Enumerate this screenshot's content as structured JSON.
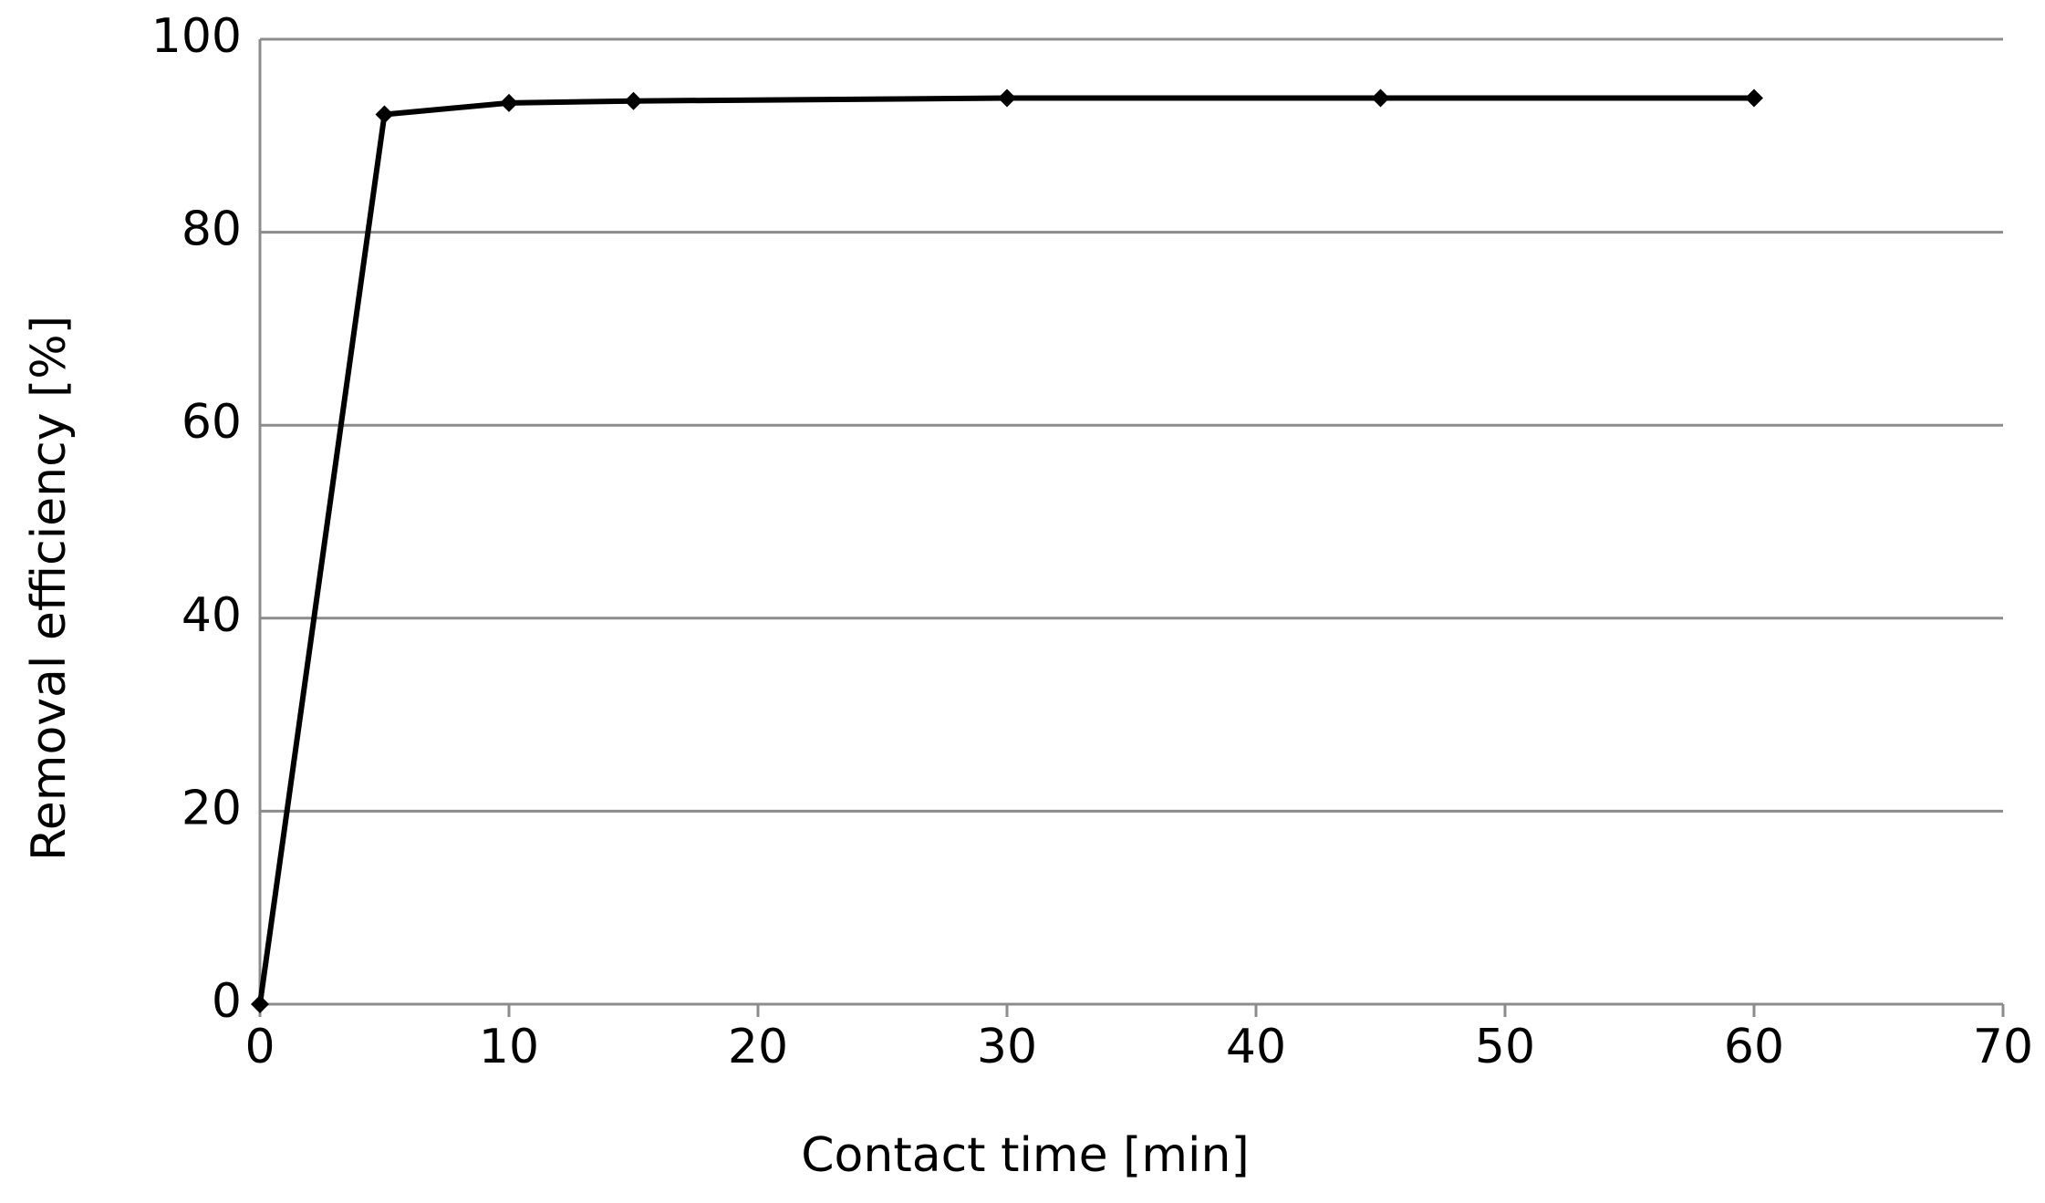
{
  "chart_data": {
    "type": "line",
    "x_label": "Contact time [min]",
    "y_label": "Removal  efficiency  [%]",
    "x": [
      0,
      5,
      10,
      15,
      30,
      45,
      60
    ],
    "series": [
      {
        "color": "#000000",
        "values": [
          0,
          92.2,
          93.4,
          93.6,
          93.9,
          93.9,
          93.9
        ]
      }
    ],
    "xlim": [
      0,
      70
    ],
    "xticks": [
      0,
      10,
      20,
      30,
      40,
      50,
      60,
      70
    ],
    "ylim": [
      0,
      100
    ],
    "yticks": [
      0,
      20,
      40,
      60,
      80,
      100
    ],
    "grid": true
  }
}
